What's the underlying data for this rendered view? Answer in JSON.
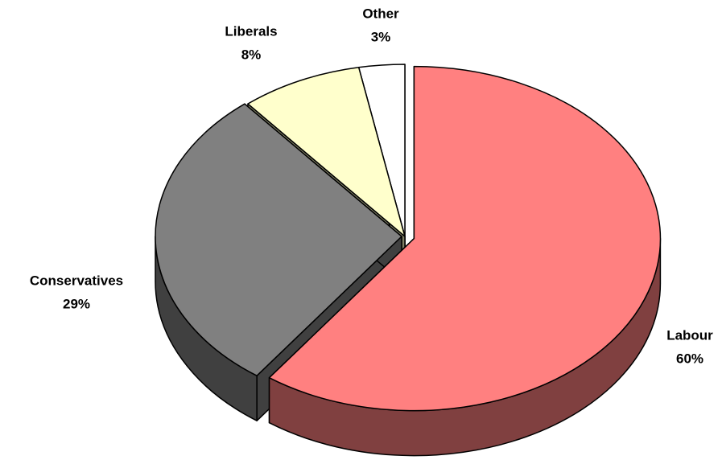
{
  "chart_data": {
    "type": "pie",
    "categories": [
      "Labour",
      "Conservatives",
      "Liberals",
      "Other"
    ],
    "values": [
      60,
      29,
      8,
      3
    ],
    "value_labels": [
      "60%",
      "29%",
      "8%",
      "3%"
    ],
    "colors": [
      "#ff8080",
      "#808080",
      "#ffffcc",
      "#ffffff"
    ],
    "side_colors": [
      "#804040",
      "#404040",
      "#808066",
      "#999999"
    ]
  }
}
